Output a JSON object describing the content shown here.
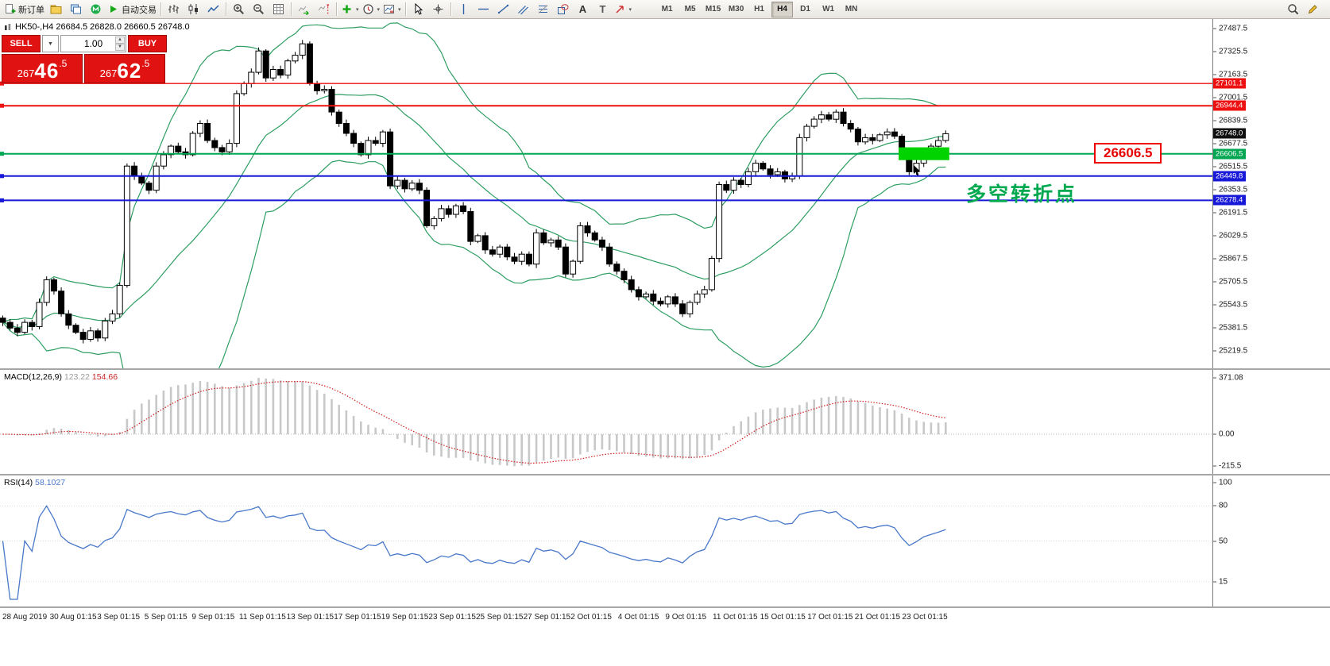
{
  "toolbar": {
    "dropdown_glyph": "▾",
    "groups": [
      {
        "items": [
          {
            "name": "new-order",
            "icon": "new-order-icon",
            "label": "新订单"
          },
          {
            "name": "profiles",
            "icon": "profiles-icon"
          },
          {
            "name": "charts",
            "icon": "charts-icon"
          },
          {
            "name": "metaquotes",
            "icon": "mq-logo-icon"
          },
          {
            "name": "autotrading",
            "icon": "autotrading-icon",
            "label": "自动交易"
          }
        ]
      },
      {
        "items": [
          {
            "name": "bar-chart",
            "icon": "bar-chart-icon"
          },
          {
            "name": "candlestick-chart",
            "icon": "candlestick-icon"
          },
          {
            "name": "line-chart",
            "icon": "line-chart-icon"
          }
        ]
      },
      {
        "items": [
          {
            "name": "zoom-in",
            "icon": "zoom-in-icon"
          },
          {
            "name": "zoom-out",
            "icon": "zoom-out-icon"
          },
          {
            "name": "tile-windows",
            "icon": "grid-icon"
          }
        ]
      },
      {
        "items": [
          {
            "name": "auto-scroll",
            "icon": "autoscroll-icon"
          },
          {
            "name": "chart-shift",
            "icon": "chart-shift-icon"
          }
        ]
      },
      {
        "items": [
          {
            "name": "indicators",
            "icon": "indicators-icon",
            "dropdown": true
          },
          {
            "name": "periods",
            "icon": "periods-icon",
            "dropdown": true
          },
          {
            "name": "templates",
            "icon": "templates-icon",
            "dropdown": true
          }
        ]
      },
      {
        "items": [
          {
            "name": "cursor",
            "icon": "cursor-icon"
          },
          {
            "name": "crosshair",
            "icon": "crosshair-icon"
          }
        ]
      },
      {
        "items": [
          {
            "name": "vertical-line",
            "icon": "vline-icon"
          },
          {
            "name": "horizontal-line",
            "icon": "hline-icon"
          },
          {
            "name": "trendline",
            "icon": "trendline-icon"
          },
          {
            "name": "channel",
            "icon": "channel-icon"
          },
          {
            "name": "fibonacci",
            "icon": "fibo-icon"
          },
          {
            "name": "shapes",
            "icon": "shapes-icon"
          },
          {
            "name": "text",
            "icon": "text-icon"
          },
          {
            "name": "label",
            "icon": "label-icon"
          },
          {
            "name": "arrows",
            "icon": "arrows-icon",
            "dropdown": true
          }
        ]
      }
    ],
    "timeframes": [
      "M1",
      "M5",
      "M15",
      "M30",
      "H1",
      "H4",
      "D1",
      "W1",
      "MN"
    ],
    "active_timeframe": "H4",
    "right_items": [
      {
        "name": "search",
        "icon": "search-icon"
      },
      {
        "name": "edit",
        "icon": "edit-icon"
      }
    ]
  },
  "chart": {
    "ohlc_header": "HK50-,H4  26684.5 26828.0 26660.5 26748.0",
    "symbol": "HK50-",
    "period": "H4"
  },
  "trade_panel": {
    "sell_label": "SELL",
    "buy_label": "BUY",
    "volume": "1.00",
    "dropdown_glyph": "▼",
    "spinner_up_glyph": "▲",
    "spinner_down_glyph": "▼",
    "sell_price": {
      "full": "26746.5",
      "prefix": "267",
      "big": "46",
      "frac": ".5"
    },
    "buy_price": {
      "full": "26762.5",
      "prefix": "267",
      "big": "62",
      "frac": ".5"
    }
  },
  "price_axis": {
    "ticks": [
      "27487.5",
      "27325.5",
      "27163.5",
      "27001.5",
      "26839.5",
      "26677.5",
      "26515.5",
      "26353.5",
      "26191.5",
      "26029.5",
      "25867.5",
      "25705.5",
      "25543.5",
      "25381.5",
      "25219.5"
    ],
    "badges": [
      {
        "value": "27101.1",
        "color": "#ee1111",
        "name": "resistance-line-1-price"
      },
      {
        "value": "26944.4",
        "color": "#ee1111",
        "name": "resistance-line-2-price"
      },
      {
        "value": "26748.0",
        "color": "#101010",
        "name": "current-price"
      },
      {
        "value": "26606.5",
        "color": "#00a651",
        "name": "pivot-line-price"
      },
      {
        "value": "26449.8",
        "color": "#1818d8",
        "name": "support-line-1-price"
      },
      {
        "value": "26278.4",
        "color": "#1818d8",
        "name": "support-line-2-price"
      }
    ]
  },
  "hlines": [
    {
      "price": 27101.1,
      "color": "#ee1111",
      "width": 1.3
    },
    {
      "price": 26944.4,
      "color": "#ee1111",
      "width": 2
    },
    {
      "price": 26606.5,
      "color": "#00a651",
      "width": 2
    },
    {
      "price": 26449.8,
      "color": "#1818d8",
      "width": 2
    },
    {
      "price": 26278.4,
      "color": "#1818d8",
      "width": 2
    }
  ],
  "indicators_panel": {
    "macd": {
      "label": "MACD(12,26,9)",
      "value1": "123.22",
      "value2": "154.66",
      "axis": [
        "371.08",
        "0.00",
        "-215.5"
      ]
    },
    "rsi": {
      "label": "RSI(14)",
      "value": "58.1027",
      "axis": [
        "100",
        "80",
        "50",
        "15"
      ]
    }
  },
  "annotations": {
    "pivot_flag": {
      "text": "26606.5"
    },
    "cn_note": {
      "text": "多空转折点",
      "color": "#00a94f"
    },
    "highlight": {
      "from_bar": 123,
      "to_bar": 129,
      "price_top": 26652,
      "price_bottom": 26562,
      "color": "#00d300"
    }
  },
  "time_axis": {
    "labels": [
      "28 Aug 2019",
      "30 Aug 01:15",
      "3 Sep 01:15",
      "5 Sep 01:15",
      "9 Sep 01:15",
      "11 Sep 01:15",
      "13 Sep 01:15",
      "17 Sep 01:15",
      "19 Sep 01:15",
      "23 Sep 01:15",
      "25 Sep 01:15",
      "27 Sep 01:15",
      "2 Oct 01:15",
      "4 Oct 01:15",
      "9 Oct 01:15",
      "11 Oct 01:15",
      "15 Oct 01:15",
      "17 Oct 01:15",
      "21 Oct 01:15",
      "23 Oct 01:15"
    ]
  },
  "chart_data": {
    "type": "candlestick",
    "symbol": "HK50-",
    "timeframe": "H4",
    "current_ohlc": {
      "open": 26684.5,
      "high": 26828.0,
      "low": 26660.5,
      "close": 26748.0
    },
    "price_axis_range": [
      25219.5,
      27487.5
    ],
    "first_open": 25450,
    "closes": [
      25420,
      25380,
      25350,
      25420,
      25390,
      25560,
      25720,
      25640,
      25480,
      25400,
      25350,
      25300,
      25360,
      25310,
      25430,
      25480,
      25680,
      26520,
      26450,
      26400,
      26350,
      26520,
      26600,
      26660,
      26620,
      26600,
      26750,
      26820,
      26700,
      26650,
      26620,
      26680,
      27030,
      27100,
      27180,
      27330,
      27140,
      27200,
      27160,
      27260,
      27300,
      27380,
      27100,
      27050,
      27060,
      26900,
      26820,
      26750,
      26680,
      26600,
      26700,
      26680,
      26760,
      26380,
      26420,
      26360,
      26400,
      26350,
      26100,
      26150,
      26220,
      26180,
      26240,
      26200,
      25990,
      26030,
      25930,
      25900,
      25950,
      25880,
      25850,
      25900,
      25830,
      26050,
      25980,
      26000,
      25950,
      25760,
      25850,
      26100,
      26050,
      26000,
      25950,
      25830,
      25780,
      25720,
      25650,
      25600,
      25620,
      25570,
      25550,
      25600,
      25550,
      25480,
      25560,
      25620,
      25650,
      25870,
      26390,
      26350,
      26420,
      26390,
      26480,
      26540,
      26500,
      26460,
      26480,
      26430,
      26450,
      26720,
      26800,
      26850,
      26880,
      26850,
      26900,
      26820,
      26780,
      26690,
      26720,
      26700,
      26740,
      26760,
      26730,
      26600,
      26480,
      26540,
      26620,
      26660,
      26700,
      26748
    ],
    "indicators": {
      "bollinger": {
        "period": 20,
        "deviation": 2,
        "color": "#2e9e62"
      },
      "macd": {
        "fast": 12,
        "slow": 26,
        "signal": 9,
        "current": [
          123.22,
          154.66
        ],
        "range": [
          -215.5,
          371.08
        ]
      },
      "rsi": {
        "period": 14,
        "current": 58.1027,
        "levels": [
          15,
          50,
          80
        ]
      }
    }
  }
}
